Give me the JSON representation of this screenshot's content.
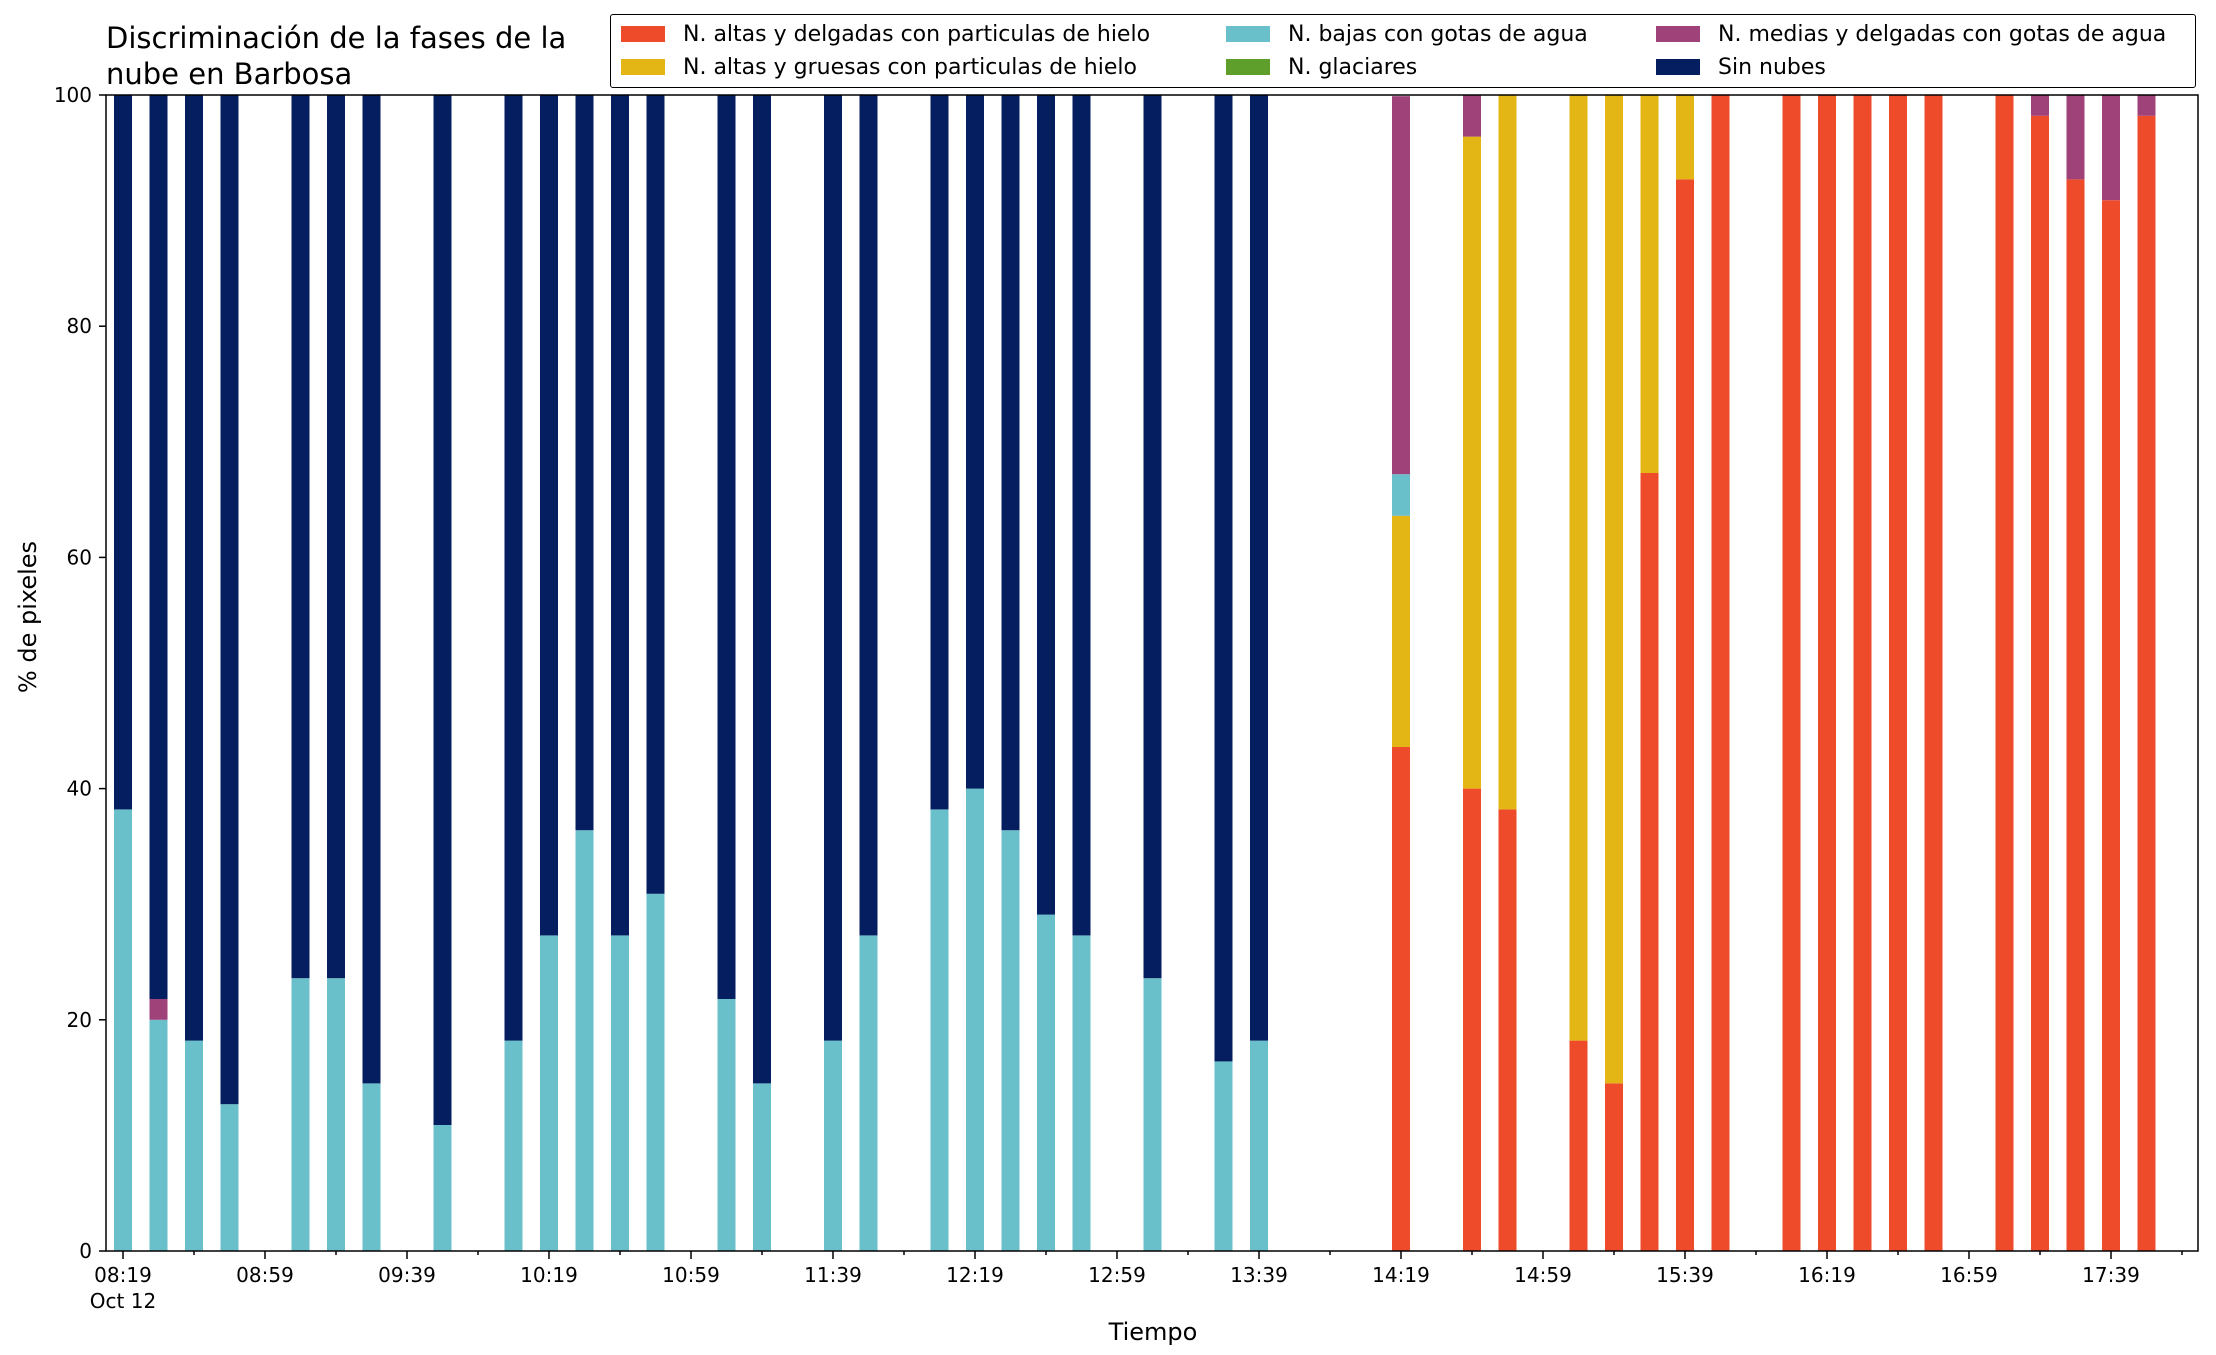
{
  "colors": {
    "hielo_delgadas": "#ee4b2b",
    "hielo_gruesas": "#e3b515",
    "bajas_agua": "#69bfca",
    "glaciares": "#5e9e2b",
    "medias_agua": "#a0427a",
    "sin_nubes": "#041e5f"
  },
  "chart_data": {
    "type": "bar",
    "stacked": true,
    "title": "Discriminación de la fases de la\nnube en Barbosa",
    "title_lines": [
      "Discriminación de la fases de la",
      "nube en Barbosa"
    ],
    "xlabel": "Tiempo",
    "ylabel": "% de pixeles",
    "ylim": [
      0,
      100
    ],
    "yticks": [
      0,
      20,
      40,
      60,
      80,
      100
    ],
    "xtick_labels": [
      "08:19",
      "08:59",
      "09:39",
      "10:19",
      "10:59",
      "11:39",
      "12:19",
      "12:59",
      "13:39",
      "14:19",
      "14:59",
      "15:39",
      "16:19",
      "16:59",
      "17:39"
    ],
    "xtick_sublabel": "Oct 12",
    "time_step_minutes": 10,
    "grid": false,
    "legend_position": "top-right",
    "legend": [
      {
        "name": "N. altas y delgadas con particulas de hielo",
        "color_key": "hielo_delgadas"
      },
      {
        "name": "N. altas y gruesas con particulas de hielo",
        "color_key": "hielo_gruesas"
      },
      {
        "name": "N. bajas con gotas de agua",
        "color_key": "bajas_agua"
      },
      {
        "name": "N. glaciares",
        "color_key": "glaciares"
      },
      {
        "name": "N. medias y delgadas con gotas de agua",
        "color_key": "medias_agua"
      },
      {
        "name": "Sin nubes",
        "color_key": "sin_nubes"
      }
    ],
    "stack_order": [
      "hielo_delgadas",
      "hielo_gruesas",
      "bajas_agua",
      "glaciares",
      "medias_agua",
      "sin_nubes"
    ],
    "bars": [
      {
        "time": "08:19",
        "values": {
          "bajas_agua": 38.2,
          "sin_nubes": 61.8
        }
      },
      {
        "time": "08:29",
        "values": {
          "bajas_agua": 20.0,
          "medias_agua": 1.8,
          "sin_nubes": 78.2
        }
      },
      {
        "time": "08:39",
        "values": {
          "bajas_agua": 18.2,
          "sin_nubes": 81.8
        }
      },
      {
        "time": "08:49",
        "values": {
          "bajas_agua": 12.7,
          "sin_nubes": 87.3
        }
      },
      {
        "time": "09:09",
        "values": {
          "bajas_agua": 23.6,
          "sin_nubes": 76.4
        }
      },
      {
        "time": "09:19",
        "values": {
          "bajas_agua": 23.6,
          "sin_nubes": 76.4
        }
      },
      {
        "time": "09:29",
        "values": {
          "bajas_agua": 14.5,
          "sin_nubes": 85.5
        }
      },
      {
        "time": "09:49",
        "values": {
          "bajas_agua": 10.9,
          "sin_nubes": 89.1
        }
      },
      {
        "time": "10:09",
        "values": {
          "bajas_agua": 18.2,
          "sin_nubes": 81.8
        }
      },
      {
        "time": "10:19",
        "values": {
          "bajas_agua": 27.3,
          "sin_nubes": 72.7
        }
      },
      {
        "time": "10:29",
        "values": {
          "bajas_agua": 36.4,
          "sin_nubes": 63.6
        }
      },
      {
        "time": "10:39",
        "values": {
          "bajas_agua": 27.3,
          "sin_nubes": 72.7
        }
      },
      {
        "time": "10:49",
        "values": {
          "bajas_agua": 30.9,
          "sin_nubes": 69.1
        }
      },
      {
        "time": "11:09",
        "values": {
          "bajas_agua": 21.8,
          "sin_nubes": 78.2
        }
      },
      {
        "time": "11:19",
        "values": {
          "bajas_agua": 14.5,
          "sin_nubes": 85.5
        }
      },
      {
        "time": "11:39",
        "values": {
          "bajas_agua": 18.2,
          "sin_nubes": 81.8
        }
      },
      {
        "time": "11:49",
        "values": {
          "bajas_agua": 27.3,
          "sin_nubes": 72.7
        }
      },
      {
        "time": "12:09",
        "values": {
          "bajas_agua": 38.2,
          "sin_nubes": 61.8
        }
      },
      {
        "time": "12:19",
        "values": {
          "bajas_agua": 40.0,
          "sin_nubes": 60.0
        }
      },
      {
        "time": "12:29",
        "values": {
          "bajas_agua": 36.4,
          "sin_nubes": 63.6
        }
      },
      {
        "time": "12:39",
        "values": {
          "bajas_agua": 29.1,
          "sin_nubes": 70.9
        }
      },
      {
        "time": "12:49",
        "values": {
          "bajas_agua": 27.3,
          "sin_nubes": 72.7
        }
      },
      {
        "time": "13:09",
        "values": {
          "bajas_agua": 23.6,
          "sin_nubes": 76.4
        }
      },
      {
        "time": "13:29",
        "values": {
          "bajas_agua": 16.4,
          "sin_nubes": 83.6
        }
      },
      {
        "time": "13:39",
        "values": {
          "bajas_agua": 18.2,
          "sin_nubes": 81.8
        }
      },
      {
        "time": "14:19",
        "values": {
          "hielo_delgadas": 43.6,
          "hielo_gruesas": 20.0,
          "bajas_agua": 3.6,
          "medias_agua": 32.7
        }
      },
      {
        "time": "14:39",
        "values": {
          "hielo_delgadas": 40.0,
          "hielo_gruesas": 56.4,
          "medias_agua": 3.6
        }
      },
      {
        "time": "14:49",
        "values": {
          "hielo_delgadas": 38.2,
          "hielo_gruesas": 61.8
        }
      },
      {
        "time": "15:09",
        "values": {
          "hielo_delgadas": 18.2,
          "hielo_gruesas": 81.8
        }
      },
      {
        "time": "15:19",
        "values": {
          "hielo_delgadas": 14.5,
          "hielo_gruesas": 85.5
        }
      },
      {
        "time": "15:29",
        "values": {
          "hielo_delgadas": 67.3,
          "hielo_gruesas": 32.7
        }
      },
      {
        "time": "15:39",
        "values": {
          "hielo_delgadas": 92.7,
          "hielo_gruesas": 7.3
        }
      },
      {
        "time": "15:49",
        "values": {
          "hielo_delgadas": 100.0
        }
      },
      {
        "time": "16:09",
        "values": {
          "hielo_delgadas": 100.0
        }
      },
      {
        "time": "16:19",
        "values": {
          "hielo_delgadas": 100.0
        }
      },
      {
        "time": "16:29",
        "values": {
          "hielo_delgadas": 100.0
        }
      },
      {
        "time": "16:39",
        "values": {
          "hielo_delgadas": 100.0
        }
      },
      {
        "time": "16:49",
        "values": {
          "hielo_delgadas": 100.0
        }
      },
      {
        "time": "17:09",
        "values": {
          "hielo_delgadas": 100.0
        }
      },
      {
        "time": "17:19",
        "values": {
          "hielo_delgadas": 98.2,
          "medias_agua": 1.8
        }
      },
      {
        "time": "17:29",
        "values": {
          "hielo_delgadas": 92.7,
          "medias_agua": 7.3
        }
      },
      {
        "time": "17:39",
        "values": {
          "hielo_delgadas": 90.9,
          "medias_agua": 9.1
        }
      },
      {
        "time": "17:49",
        "values": {
          "hielo_delgadas": 98.2,
          "medias_agua": 1.8
        }
      }
    ]
  }
}
